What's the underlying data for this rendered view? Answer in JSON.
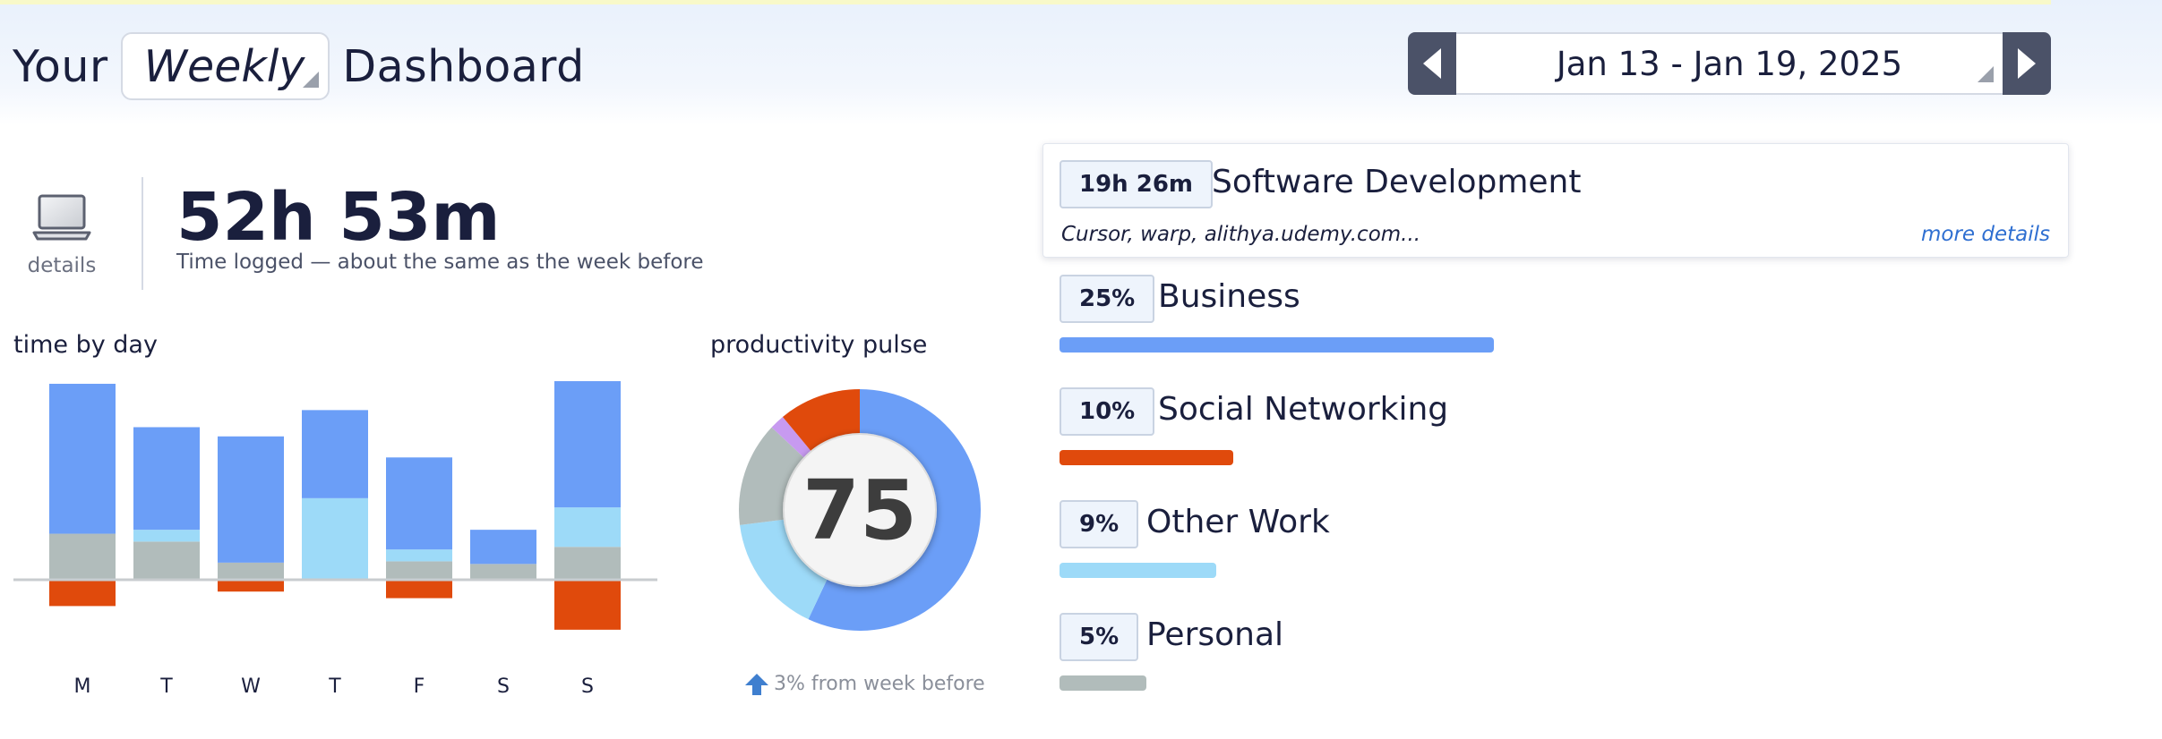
{
  "header": {
    "title_prefix": "Your",
    "period": "Weekly",
    "title_suffix": "Dashboard",
    "date_range": "Jan 13 - Jan 19, 2025",
    "prev_icon": "chevron-left-icon",
    "next_icon": "chevron-right-icon"
  },
  "summary": {
    "icon": "laptop-icon",
    "details_label": "details",
    "total_time": "52h 53m",
    "caption": "Time logged — about the same as the week before"
  },
  "colors": {
    "business": "#6b9ef7",
    "social": "#e04a0c",
    "other_work": "#9ddaf8",
    "personal": "#b1bcbb",
    "purple": "#c79af0",
    "axis": "#c8cccf"
  },
  "chart_data": [
    {
      "type": "bar",
      "title": "time by day",
      "categories": [
        "M",
        "T",
        "W",
        "T",
        "F",
        "S",
        "S"
      ],
      "stacked": true,
      "baseline": 0,
      "series": [
        {
          "key": "personal",
          "color": "#b1bcbb",
          "values": [
            3.5,
            2.9,
            1.3,
            0,
            1.4,
            1.2,
            2.5
          ]
        },
        {
          "key": "other_work",
          "color": "#9ddaf8",
          "values": [
            0,
            0.9,
            0,
            6.2,
            0.9,
            0,
            3.0
          ]
        },
        {
          "key": "business",
          "color": "#6b9ef7",
          "values": [
            11.4,
            7.8,
            9.6,
            6.7,
            7.0,
            2.6,
            9.6
          ]
        },
        {
          "key": "social",
          "color": "#e04a0c",
          "values": [
            -2.0,
            0,
            -0.9,
            0,
            -1.4,
            0,
            -3.8
          ]
        }
      ]
    },
    {
      "type": "pie",
      "title": "productivity pulse",
      "center_value": "75",
      "slices": [
        {
          "key": "business",
          "color": "#6b9ef7",
          "value": 57
        },
        {
          "key": "other_work",
          "color": "#9ddaf8",
          "value": 16
        },
        {
          "key": "personal",
          "color": "#b1bcbb",
          "value": 14
        },
        {
          "key": "purple",
          "color": "#c79af0",
          "value": 2
        },
        {
          "key": "social",
          "color": "#e04a0c",
          "value": 11
        }
      ],
      "note": "3% from week before",
      "note_icon": "arrow-up-icon"
    }
  ],
  "categories": {
    "top": {
      "duration": "19h 26m",
      "name": "Software Development",
      "apps": "Cursor, warp, alithya.udemy.com...",
      "more_label": "more details"
    },
    "items": [
      {
        "percent": "25%",
        "name": "Business",
        "share": 0.25,
        "color": "#6b9ef7"
      },
      {
        "percent": "10%",
        "name": "Social Networking",
        "share": 0.1,
        "color": "#e04a0c"
      },
      {
        "percent": "9%",
        "name": "Other Work",
        "share": 0.09,
        "color": "#9ddaf8"
      },
      {
        "percent": "5%",
        "name": "Personal",
        "share": 0.05,
        "color": "#b1bcbb"
      }
    ]
  }
}
